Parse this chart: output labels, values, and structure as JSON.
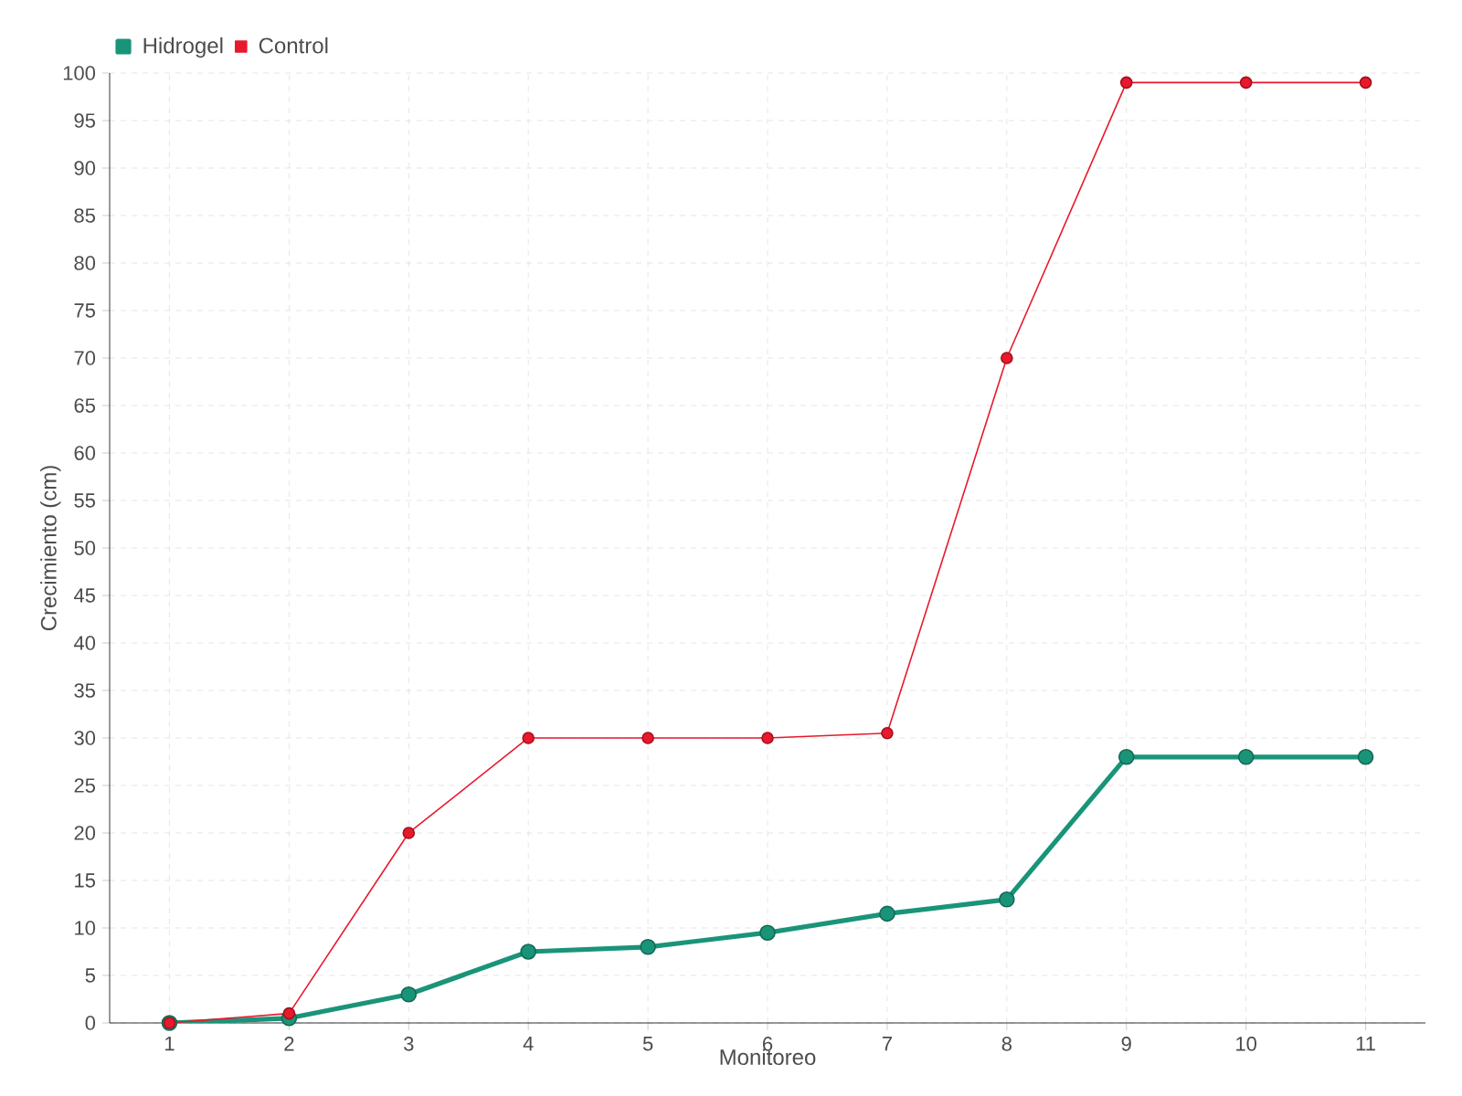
{
  "chart_data": {
    "type": "line",
    "xlabel": "Monitoreo",
    "ylabel": "Crecimiento (cm)",
    "categories": [
      "1",
      "2",
      "3",
      "4",
      "5",
      "6",
      "7",
      "8",
      "9",
      "10",
      "11"
    ],
    "series": [
      {
        "name": "Hidrogel",
        "color": "#1a9479",
        "values": [
          0,
          0.5,
          3,
          7.5,
          8,
          9.5,
          11.5,
          13,
          28,
          28,
          28
        ]
      },
      {
        "name": "Control",
        "color": "#e8192c",
        "values": [
          0,
          1,
          20,
          30,
          30,
          30,
          30.5,
          70,
          99,
          99,
          99
        ]
      }
    ],
    "ylim": [
      0,
      100
    ],
    "yticks": [
      0,
      5,
      10,
      15,
      20,
      25,
      30,
      35,
      40,
      45,
      50,
      55,
      60,
      65,
      70,
      75,
      80,
      85,
      90,
      95,
      100
    ],
    "grid": true,
    "legend": "top left",
    "marker": "circle",
    "line_style": "solid"
  }
}
